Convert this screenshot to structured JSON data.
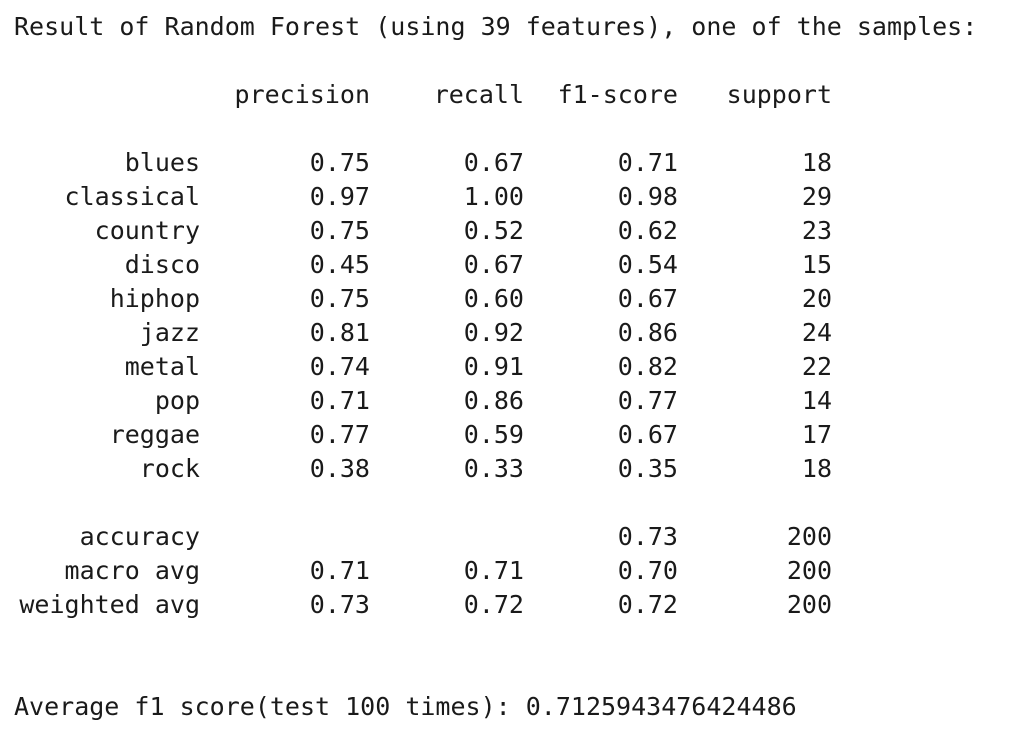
{
  "title": "Result of Random Forest (using 39 features), one of the samples:",
  "headers": {
    "precision": "precision",
    "recall": "recall",
    "f1": "f1-score",
    "support": "support"
  },
  "classes": [
    {
      "label": "blues",
      "precision": "0.75",
      "recall": "0.67",
      "f1": "0.71",
      "support": "18"
    },
    {
      "label": "classical",
      "precision": "0.97",
      "recall": "1.00",
      "f1": "0.98",
      "support": "29"
    },
    {
      "label": "country",
      "precision": "0.75",
      "recall": "0.52",
      "f1": "0.62",
      "support": "23"
    },
    {
      "label": "disco",
      "precision": "0.45",
      "recall": "0.67",
      "f1": "0.54",
      "support": "15"
    },
    {
      "label": "hiphop",
      "precision": "0.75",
      "recall": "0.60",
      "f1": "0.67",
      "support": "20"
    },
    {
      "label": "jazz",
      "precision": "0.81",
      "recall": "0.92",
      "f1": "0.86",
      "support": "24"
    },
    {
      "label": "metal",
      "precision": "0.74",
      "recall": "0.91",
      "f1": "0.82",
      "support": "22"
    },
    {
      "label": "pop",
      "precision": "0.71",
      "recall": "0.86",
      "f1": "0.77",
      "support": "14"
    },
    {
      "label": "reggae",
      "precision": "0.77",
      "recall": "0.59",
      "f1": "0.67",
      "support": "17"
    },
    {
      "label": "rock",
      "precision": "0.38",
      "recall": "0.33",
      "f1": "0.35",
      "support": "18"
    }
  ],
  "summary": [
    {
      "label": "accuracy",
      "precision": "",
      "recall": "",
      "f1": "0.73",
      "support": "200"
    },
    {
      "label": "macro avg",
      "precision": "0.71",
      "recall": "0.71",
      "f1": "0.70",
      "support": "200"
    },
    {
      "label": "weighted avg",
      "precision": "0.73",
      "recall": "0.72",
      "f1": "0.72",
      "support": "200"
    }
  ],
  "footer": "Average f1 score(test 100 times): 0.7125943476424486"
}
